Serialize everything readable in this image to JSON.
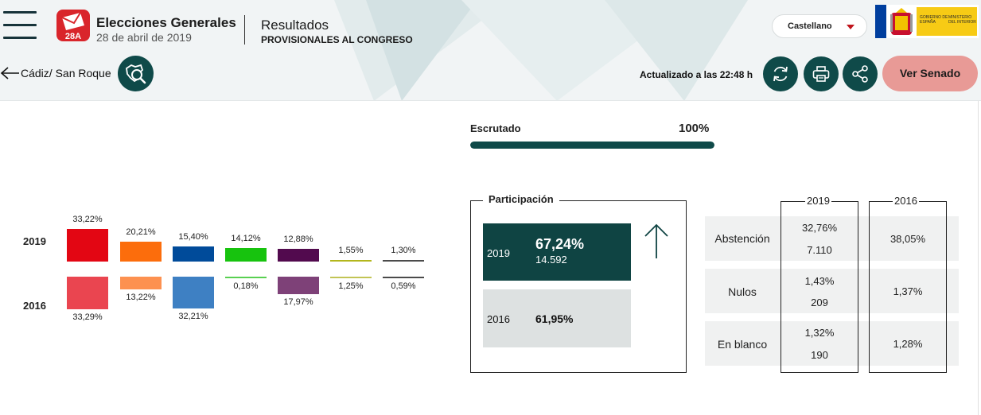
{
  "header": {
    "brand_title": "Elecciones Generales",
    "brand_date": "28 de abril de 2019",
    "logo_badge": "28A",
    "results_title": "Resultados",
    "results_subtitle": "PROVISIONALES AL CONGRESO",
    "language": "Castellano",
    "gov_text_1": "GOBIERNO DE ESPAÑA",
    "gov_text_2": "MINISTERIO DEL INTERIOR",
    "colors": {
      "dark_teal": "#0f4a49",
      "senado": "#e89a96",
      "accent_red": "#c0141c"
    }
  },
  "nav": {
    "back_label": "Cádiz/ San Roque",
    "updated": "Actualizado a las 22:48 h",
    "senado_label": "Ver Senado",
    "icons": [
      "menu-icon",
      "map-search-icon",
      "refresh-icon",
      "print-icon",
      "share-icon",
      "arrow-left-icon"
    ]
  },
  "escrutado": {
    "label": "Escrutado",
    "value": "100%",
    "fraction": 1.0
  },
  "chart_data": {
    "type": "bar",
    "years": [
      "2019",
      "2016"
    ],
    "series": [
      {
        "color": "#e30613",
        "color2016": "#ea4550",
        "v2019": 33.22,
        "v2016": 33.29,
        "l2019": "33,22%",
        "l2016": "33,29%"
      },
      {
        "color": "#fc6d0c",
        "color2016": "#fd9150",
        "v2019": 20.21,
        "v2016": 13.22,
        "l2019": "20,21%",
        "l2016": "13,22%"
      },
      {
        "color": "#004b9a",
        "color2016": "#3e80c3",
        "v2019": 15.4,
        "v2016": 32.21,
        "l2019": "15,40%",
        "l2016": "32,21%"
      },
      {
        "color": "#17c30e",
        "color2016": "#58d051",
        "v2019": 14.12,
        "v2016": 0.18,
        "l2019": "14,12%",
        "l2016": "0,18%"
      },
      {
        "color": "#520a4e",
        "color2016": "#7e4178",
        "v2019": 12.88,
        "v2016": 17.97,
        "l2019": "12,88%",
        "l2016": "17,97%"
      },
      {
        "color": "#b3b61c",
        "color2016": "#c2c455",
        "v2019": 1.55,
        "v2016": 1.25,
        "l2019": "1,55%",
        "l2016": "1,25%"
      },
      {
        "color": "#4b4b4b",
        "color2016": "#4b4b4b",
        "v2019": 1.3,
        "v2016": 0.59,
        "l2019": "1,30%",
        "l2016": "0,59%"
      }
    ]
  },
  "participacion": {
    "title": "Participación",
    "y2019": {
      "year": "2019",
      "pct": "67,24%",
      "votes": "14.592"
    },
    "y2016": {
      "year": "2016",
      "pct": "61,95%"
    }
  },
  "stats": {
    "col2019": "2019",
    "col2016": "2016",
    "rows": [
      {
        "label": "Abstención",
        "v2019": "32,76%",
        "v2019b": "7.110",
        "v2016": "38,05%"
      },
      {
        "label": "Nulos",
        "v2019": "1,43%",
        "v2019b": "209",
        "v2016": "1,37%"
      },
      {
        "label": "En blanco",
        "v2019": "1,32%",
        "v2019b": "190",
        "v2016": "1,28%"
      }
    ]
  }
}
